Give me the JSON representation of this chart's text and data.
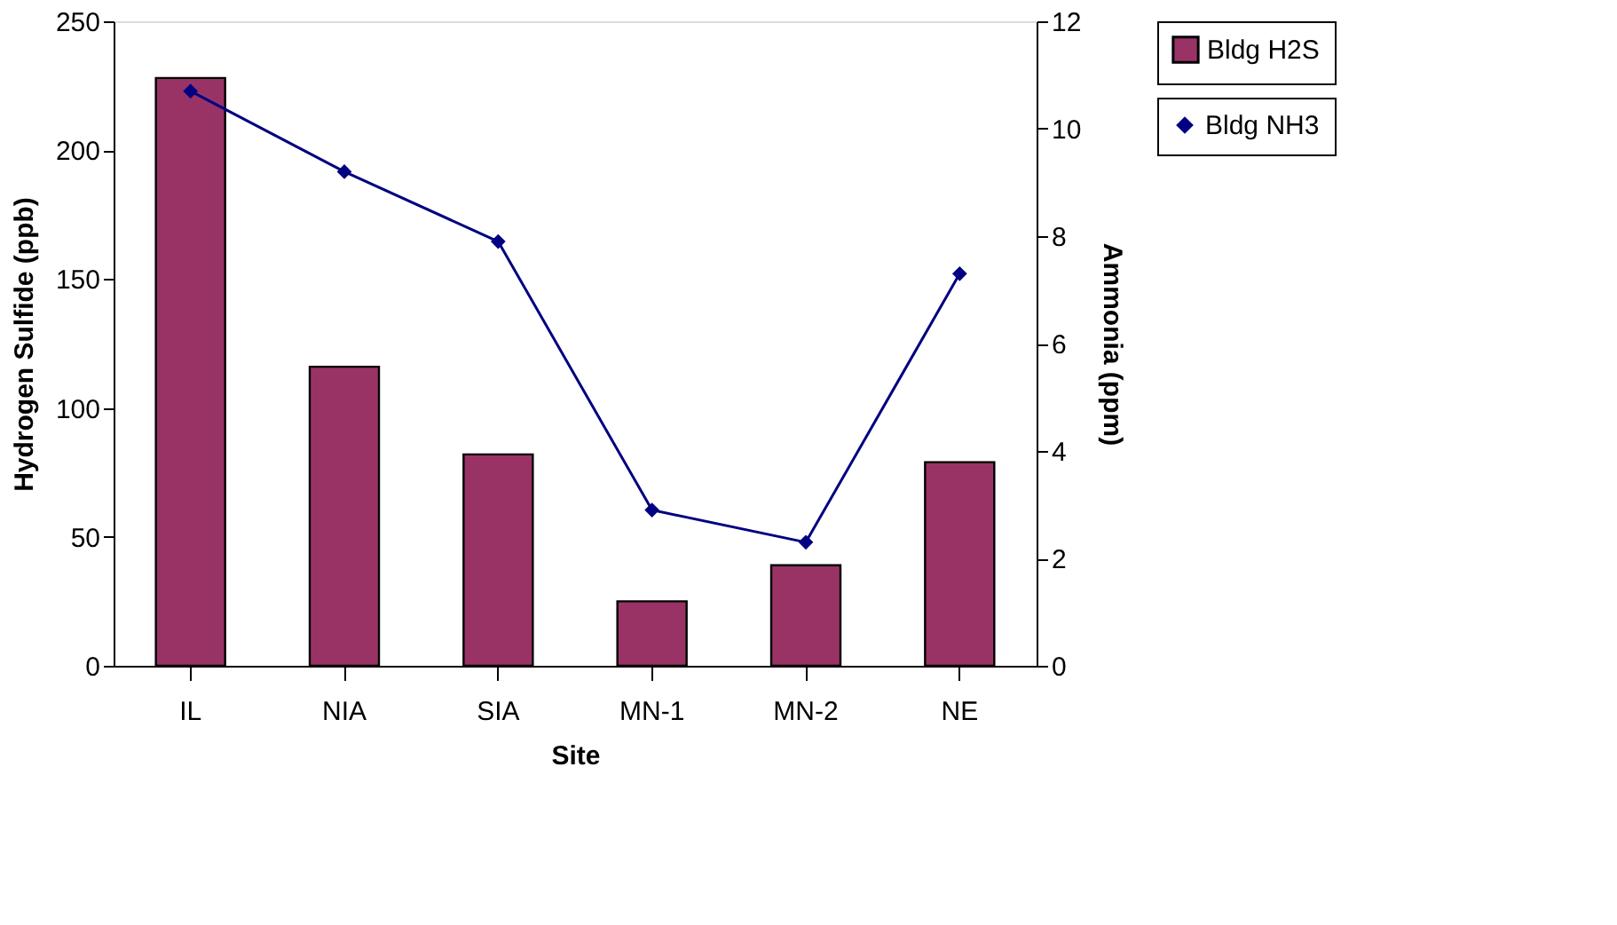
{
  "chart_data": {
    "type": "bar",
    "xlabel": "Site",
    "ylabel": "Hydrogen Sulfide (ppb)",
    "y2label": "Ammonia (ppm)",
    "categories": [
      "IL",
      "NIA",
      "SIA",
      "MN-1",
      "MN-2",
      "NE"
    ],
    "series": [
      {
        "name": "Bldg H2S",
        "color": "#993366",
        "values": [
          228,
          116,
          82,
          25,
          39,
          79
        ]
      },
      {
        "name": "Bldg NH3",
        "color": "#000080",
        "type": "line",
        "axis": "y2",
        "marker": "diamond",
        "values": [
          10.7,
          9.2,
          7.9,
          2.9,
          2.3,
          7.3
        ]
      }
    ],
    "ylim": [
      0,
      250
    ],
    "yticks": [
      0,
      50,
      100,
      150,
      200,
      250
    ],
    "y2lim": [
      0,
      12
    ],
    "y2ticks": [
      0,
      2,
      4,
      6,
      8,
      10,
      12
    ],
    "grid": false,
    "legend": "right"
  }
}
